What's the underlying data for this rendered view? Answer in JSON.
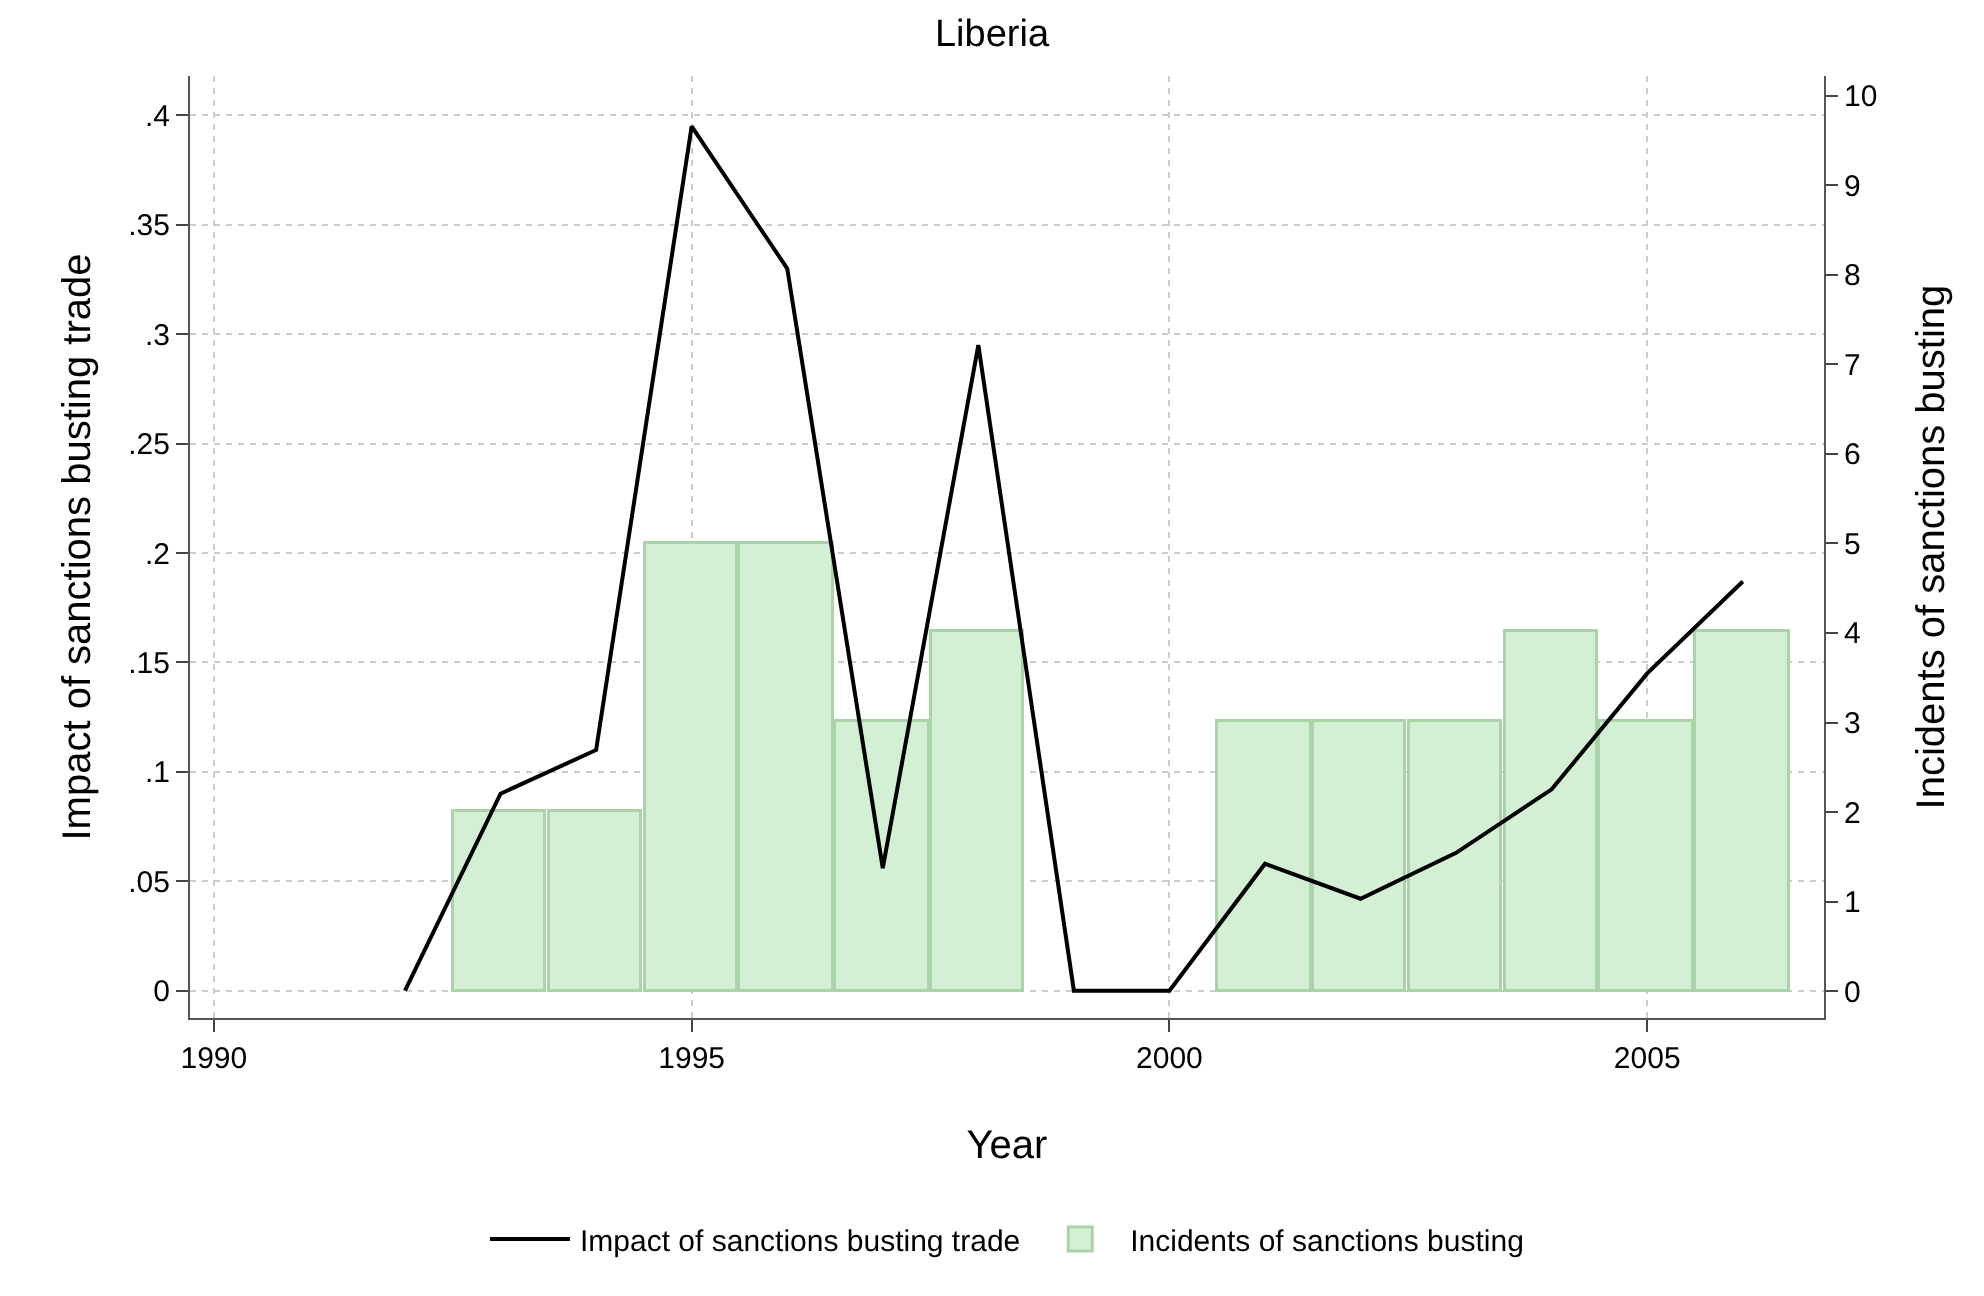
{
  "chart_data": {
    "type": "line",
    "title": "Liberia",
    "xlabel": "Year",
    "ylabel": "Impact of sanctions busting trade",
    "y2label": "Incidents of sanctions busting",
    "x": [
      1992,
      1993,
      1994,
      1995,
      1996,
      1997,
      1998,
      1999,
      2000,
      2001,
      2002,
      2003,
      2004,
      2005,
      2006
    ],
    "series": [
      {
        "name": "Impact of sanctions busting trade",
        "color": "#000000",
        "values": [
          0,
          0.09,
          0.11,
          0.395,
          0.33,
          0.056,
          0.295,
          0,
          0,
          0.058,
          0.042,
          0.063,
          0.092,
          0.145,
          0.187
        ]
      },
      {
        "name": "Incidents of sanctions busting",
        "type": "bar",
        "axis": "y2",
        "color": "#d4f0d4",
        "x": [
          1993,
          1994,
          1995,
          1996,
          1997,
          1998,
          2001,
          2002,
          2003,
          2004,
          2005,
          2006
        ],
        "values": [
          2,
          2,
          5,
          5,
          3,
          4,
          3,
          3,
          3,
          4,
          3,
          4
        ]
      }
    ],
    "xlim": [
      1989.75,
      2006.85
    ],
    "xticks": [
      1990,
      1995,
      2000,
      2005
    ],
    "ylim": [
      -0.0125,
      0.418
    ],
    "yticks": [
      0,
      {
        "value": 0.05,
        "label": ".05"
      },
      {
        "value": 0.1,
        "label": ".1"
      },
      {
        "value": 0.15,
        "label": ".15"
      },
      {
        "value": 0.2,
        "label": ".2"
      },
      {
        "value": 0.25,
        "label": ".25"
      },
      {
        "value": 0.3,
        "label": ".3"
      },
      {
        "value": 0.35,
        "label": ".35"
      },
      {
        "value": 0.4,
        "label": ".4"
      }
    ],
    "y2lim": [
      -0.3,
      10.22
    ],
    "y2ticks": [
      0,
      1,
      2,
      3,
      4,
      5,
      6,
      7,
      8,
      9,
      10
    ],
    "grid": true,
    "legend": "bottom",
    "line_style": "solid",
    "marker": "none"
  }
}
